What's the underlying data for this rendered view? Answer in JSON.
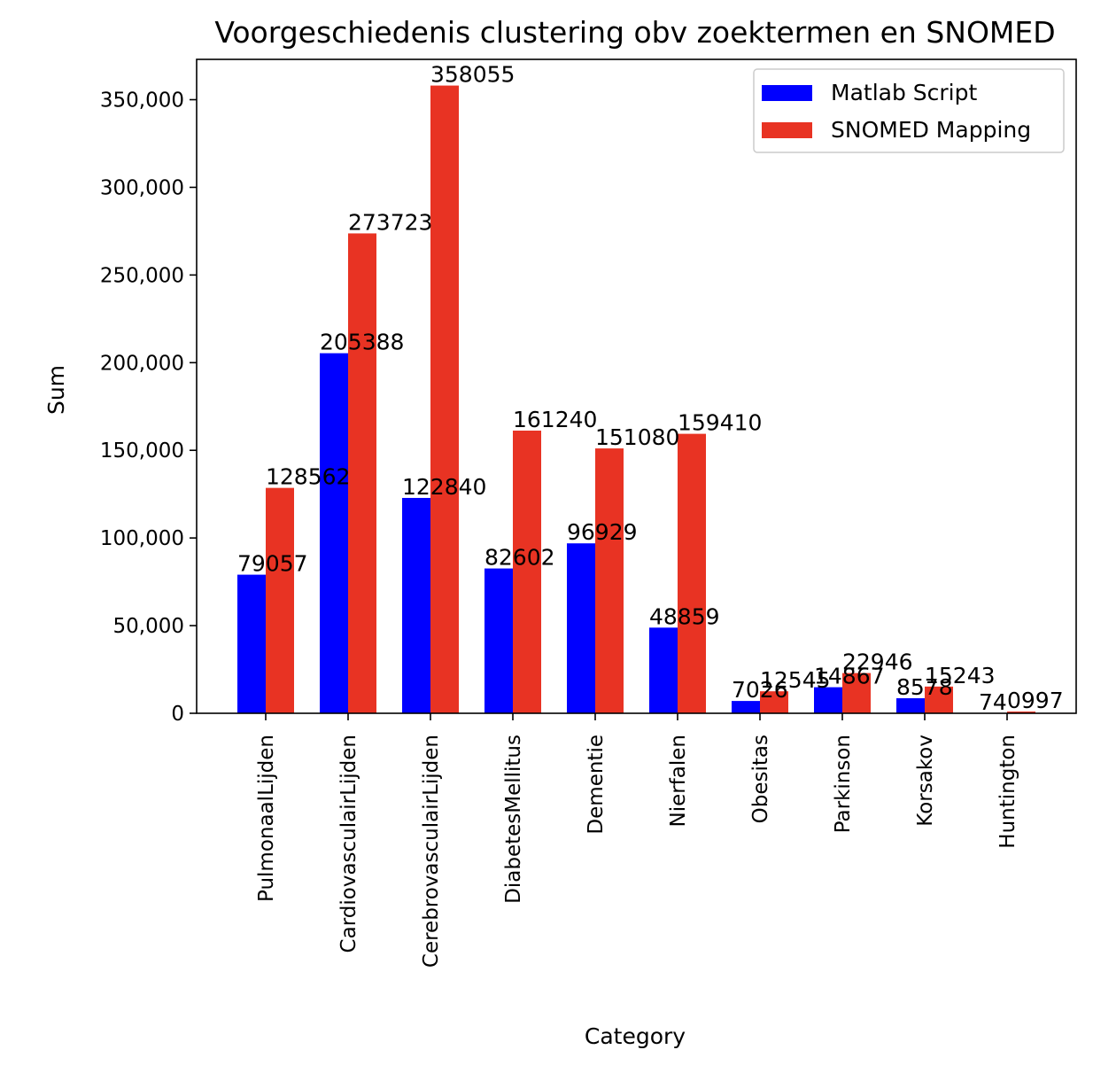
{
  "chart_data": {
    "type": "bar",
    "title": "Voorgeschiedenis clustering obv zoektermen en SNOMED",
    "xlabel": "Category",
    "ylabel": "Sum",
    "ylim": [
      0,
      373000
    ],
    "yticks": [
      0,
      50000,
      100000,
      150000,
      200000,
      250000,
      300000,
      350000
    ],
    "ytick_labels": [
      "0",
      "50,000",
      "100,000",
      "150,000",
      "200,000",
      "250,000",
      "300,000",
      "350,000"
    ],
    "grid": false,
    "legend_position": "top-right",
    "categories": [
      "PulmonaalLijden",
      "CardiovasculairLijden",
      "CerebrovasculairLijden",
      "DiabetesMellitus",
      "Dementie",
      "Nierfalen",
      "Obesitas",
      "Parkinson",
      "Korsakov",
      "Huntington"
    ],
    "series": [
      {
        "name": "Matlab Script",
        "color": "#0000ff",
        "values": [
          79057,
          205388,
          122840,
          82602,
          96929,
          48859,
          7026,
          14867,
          8578,
          74
        ],
        "labels": [
          "79057",
          "205388",
          "122840",
          "82602",
          "96929",
          "48859",
          "7026",
          "14867",
          "8578",
          "74"
        ]
      },
      {
        "name": "SNOMED Mapping",
        "color": "#e83323",
        "values": [
          128562,
          273723,
          358055,
          161240,
          151080,
          159410,
          12545,
          22946,
          15243,
          997
        ],
        "labels": [
          "128562",
          "273723",
          "358055",
          "161240",
          "151080",
          "159410",
          "12545",
          "22946",
          "15243",
          "0997"
        ]
      }
    ]
  }
}
